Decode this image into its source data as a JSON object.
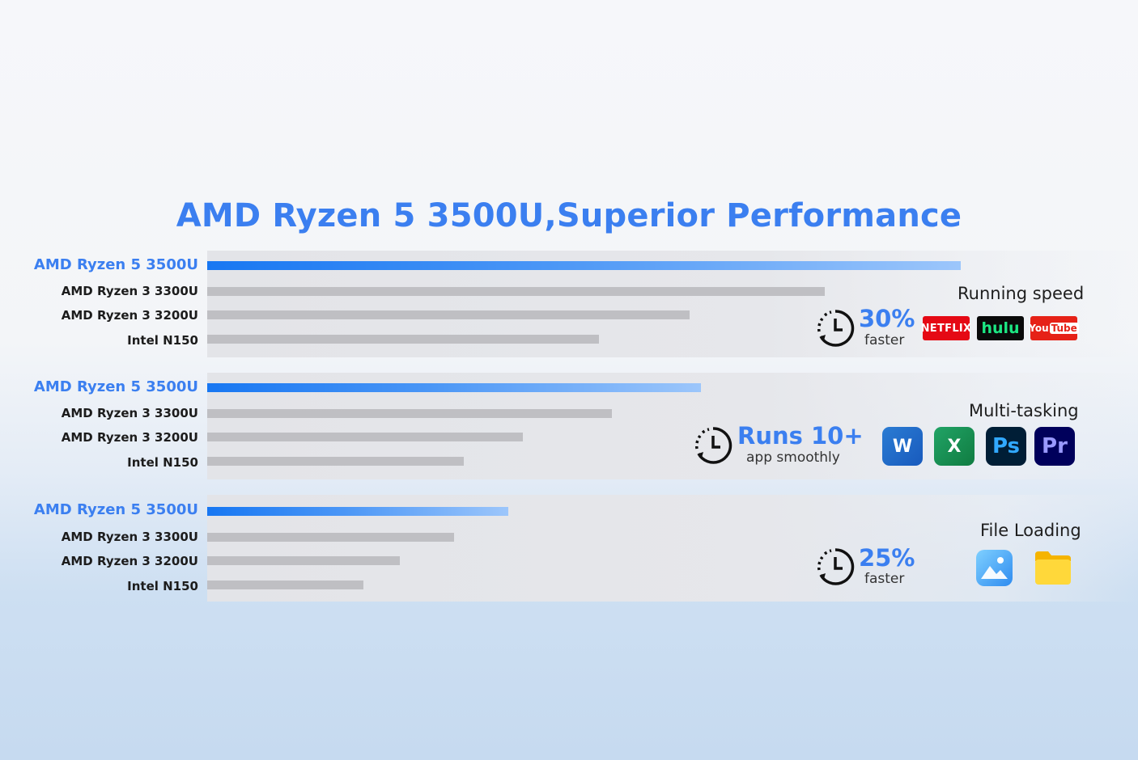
{
  "title": "AMD Ryzen 5 3500U,Superior Performance",
  "chart_data": [
    {
      "type": "bar",
      "categories": [
        "AMD Ryzen 5 3500U",
        "AMD Ryzen 3 3300U",
        "AMD Ryzen 3 3200U",
        "Intel N150"
      ],
      "values": [
        100,
        82,
        64,
        52
      ],
      "title": "Running speed",
      "callout": {
        "value": "30%",
        "text": "faster"
      }
    },
    {
      "type": "bar",
      "categories": [
        "AMD Ryzen 5 3500U",
        "AMD Ryzen 3 3300U",
        "AMD Ryzen 3 3200U",
        "Intel N150"
      ],
      "values": [
        100,
        82,
        64,
        52
      ],
      "title": "Multi-tasking",
      "callout": {
        "value": "Runs 10+",
        "text": "app smoothly"
      }
    },
    {
      "type": "bar",
      "categories": [
        "AMD Ryzen 5 3500U",
        "AMD Ryzen 3 3300U",
        "AMD Ryzen 3 3200U",
        "Intel N150"
      ],
      "values": [
        100,
        82,
        64,
        52
      ],
      "title": "File Loading",
      "callout": {
        "value": "25%",
        "text": "faster"
      }
    }
  ],
  "logos": {
    "netflix": "NETFLIX",
    "hulu": "hulu",
    "youtube_you": "You",
    "youtube_tube": "Tube"
  },
  "apps": {
    "word": "W",
    "excel": "X",
    "photoshop": "Ps",
    "premiere": "Pr"
  },
  "colors": {
    "accent": "#3b7ff0",
    "bar_highlight": "#1877f2",
    "bar_gray": "#bfbfc3"
  }
}
